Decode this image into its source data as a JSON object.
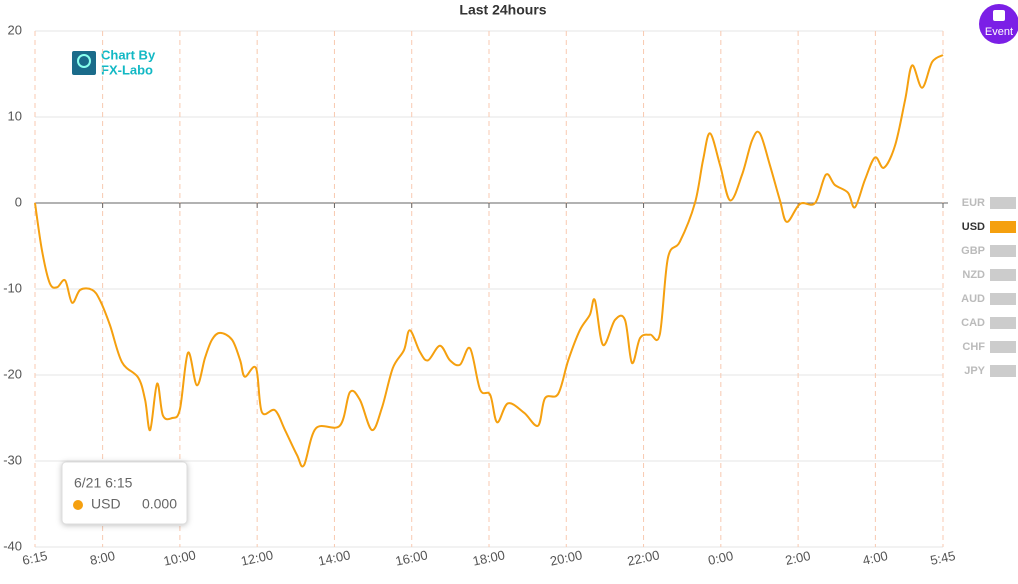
{
  "chart_data": {
    "type": "line",
    "title": "Last 24hours",
    "x": [
      6.25,
      6.43,
      6.63,
      6.82,
      7.03,
      7.21,
      7.42,
      7.73,
      7.93,
      8.19,
      8.5,
      8.92,
      9.1,
      9.23,
      9.41,
      9.56,
      9.8,
      10.0,
      10.21,
      10.44,
      10.65,
      10.83,
      11.04,
      11.35,
      11.56,
      11.68,
      11.97,
      12.12,
      12.46,
      12.72,
      13.03,
      13.21,
      13.52,
      14.14,
      14.4,
      14.66,
      14.97,
      15.23,
      15.51,
      15.8,
      15.95,
      16.21,
      16.42,
      16.73,
      16.99,
      17.25,
      17.51,
      17.77,
      18.03,
      18.21,
      18.49,
      18.91,
      19.27,
      19.45,
      19.79,
      20.05,
      20.35,
      20.61,
      20.74,
      20.95,
      21.26,
      21.52,
      21.7,
      21.91,
      22.17,
      22.42,
      22.63,
      22.94,
      23.33,
      23.54,
      23.72,
      23.98,
      24.24,
      24.55,
      24.81,
      25.01,
      25.27,
      25.53,
      25.71,
      26.05,
      26.44,
      26.72,
      26.95,
      27.29,
      27.47,
      27.73,
      27.99,
      28.22,
      28.51,
      28.77,
      28.95,
      29.21,
      29.47,
      29.75
    ],
    "series": [
      {
        "name": "USD",
        "color": "#f5a00f",
        "values": [
          0,
          -5.5,
          -9.3,
          -9.8,
          -9,
          -11.6,
          -10.1,
          -10.1,
          -11.3,
          -14.2,
          -18.5,
          -20.3,
          -22.9,
          -26.4,
          -21,
          -24.7,
          -25,
          -24,
          -17.4,
          -21.2,
          -18,
          -15.9,
          -15.1,
          -15.9,
          -18.3,
          -20.2,
          -19.2,
          -24.3,
          -24.1,
          -26.4,
          -29.3,
          -30.5,
          -26.2,
          -25.9,
          -22,
          -22.9,
          -26.4,
          -23.8,
          -19.2,
          -17.1,
          -14.8,
          -17.3,
          -18.3,
          -16.6,
          -18.3,
          -18.8,
          -16.9,
          -21.7,
          -22.3,
          -25.5,
          -23.3,
          -24.4,
          -25.9,
          -22.7,
          -22.2,
          -18.3,
          -14.8,
          -13,
          -11.3,
          -16.5,
          -13.6,
          -13.6,
          -18.6,
          -15.7,
          -15.3,
          -15.3,
          -6.4,
          -4.5,
          0,
          5,
          8.1,
          4.4,
          0.3,
          3.3,
          7.3,
          8.1,
          4.4,
          0.3,
          -2.2,
          -0.1,
          0,
          3.3,
          2.1,
          1.2,
          -0.5,
          2.7,
          5.3,
          4.1,
          6.7,
          12,
          16,
          13.4,
          16.4,
          17.2
        ]
      }
    ],
    "xlim": [
      6.25,
      29.75
    ],
    "xticks": [
      {
        "value": 6.25,
        "label": "6:15"
      },
      {
        "value": 8,
        "label": "8:00"
      },
      {
        "value": 10,
        "label": "10:00"
      },
      {
        "value": 12,
        "label": "12:00"
      },
      {
        "value": 14,
        "label": "14:00"
      },
      {
        "value": 16,
        "label": "16:00"
      },
      {
        "value": 18,
        "label": "18:00"
      },
      {
        "value": 20,
        "label": "20:00"
      },
      {
        "value": 22,
        "label": "22:00"
      },
      {
        "value": 24,
        "label": "0:00"
      },
      {
        "value": 26,
        "label": "2:00"
      },
      {
        "value": 28,
        "label": "4:00"
      },
      {
        "value": 29.75,
        "label": "5:45"
      }
    ],
    "ylim": [
      -40,
      20
    ],
    "yticks": [
      20,
      10,
      0,
      -10,
      -20,
      -30,
      -40
    ],
    "grid": true,
    "legend": [
      {
        "name": "EUR",
        "active": false
      },
      {
        "name": "USD",
        "active": true
      },
      {
        "name": "GBP",
        "active": false
      },
      {
        "name": "NZD",
        "active": false
      },
      {
        "name": "AUD",
        "active": false
      },
      {
        "name": "CAD",
        "active": false
      },
      {
        "name": "CHF",
        "active": false
      },
      {
        "name": "JPY",
        "active": false
      }
    ],
    "tooltip": {
      "title": "6/21 6:15",
      "series": "USD",
      "value_label": "0.000"
    }
  },
  "logo": {
    "line1": "Chart By",
    "line2": "FX-Labo"
  },
  "button": {
    "label": "Event"
  }
}
